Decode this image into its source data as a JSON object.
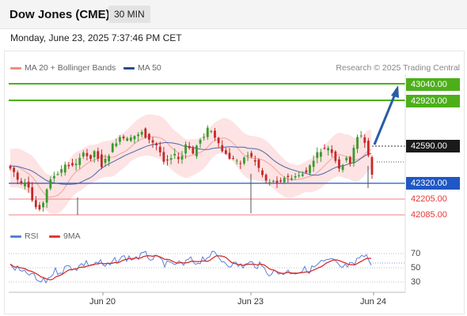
{
  "header": {
    "title": "Dow Jones (CME)",
    "timeframe": "30 MIN"
  },
  "datetime": "Monday, June 23, 2025 7:37:46 PM CET",
  "legend": {
    "ma20": {
      "label": "MA 20 + Bollinger Bands",
      "color": "#f28b82"
    },
    "ma50": {
      "label": "MA 50",
      "color": "#2b4a8c"
    },
    "credit": "Research © 2025 Trading Central"
  },
  "levels": [
    {
      "label": "43040.00",
      "kind": "resistance",
      "color": "#4caf1a"
    },
    {
      "label": "42920.00",
      "kind": "resistance",
      "color": "#4caf1a"
    },
    {
      "label": "42590.00",
      "kind": "last-price",
      "color": "#1a1a1a"
    },
    {
      "label": "42320.00",
      "kind": "pivot",
      "color": "#1f57c3"
    },
    {
      "label": "42205.00",
      "kind": "support",
      "color": "#e53935"
    },
    {
      "label": "42085.00",
      "kind": "support",
      "color": "#e53935"
    }
  ],
  "rsi": {
    "label": "RSI",
    "label_color": "#5b7fd8",
    "ma_label": "9MA",
    "ma_color": "#e53935",
    "levels": [
      "70",
      "50",
      "30"
    ]
  },
  "x_axis": [
    "Jun 20",
    "Jun 23",
    "Jun 24"
  ],
  "colors": {
    "bull": "#3a9a2e",
    "bear": "#c62828",
    "band": "#fde3e3"
  }
}
